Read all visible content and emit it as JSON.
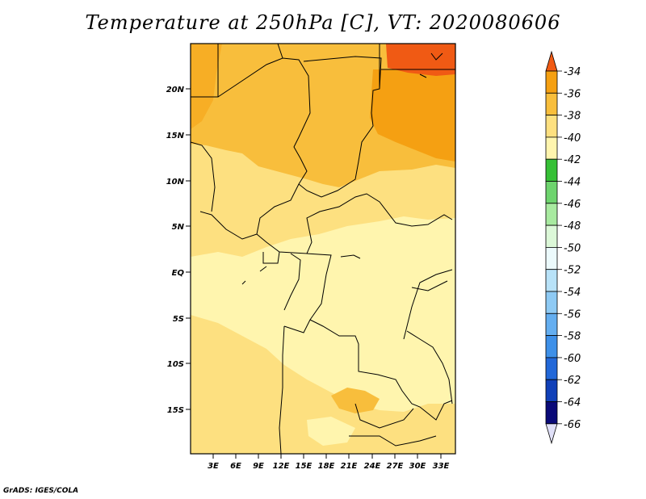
{
  "title": "Temperature at 250hPa [C], VT: 2020080606",
  "credit": "GrADS: IGES/COLA",
  "map": {
    "lat_labels": [
      "20N",
      "15N",
      "10N",
      "5N",
      "EQ",
      "5S",
      "10S",
      "15S"
    ],
    "lon_labels": [
      "3E",
      "6E",
      "9E",
      "12E",
      "15E",
      "18E",
      "21E",
      "24E",
      "27E",
      "30E",
      "33E"
    ]
  },
  "colorbar": {
    "levels": [
      "-34",
      "-36",
      "-38",
      "-40",
      "-42",
      "-44",
      "-46",
      "-48",
      "-50",
      "-52",
      "-54",
      "-56",
      "-58",
      "-60",
      "-62",
      "-64",
      "-66"
    ],
    "colors": [
      "#f05a14",
      "#f5a012",
      "#f8be3c",
      "#fde080",
      "#fff5ae",
      "#36c036",
      "#6ed46e",
      "#a8eaa0",
      "#dcf8d8",
      "#ecfafc",
      "#b8e2f8",
      "#8ecaf4",
      "#64aef0",
      "#3e90e8",
      "#2268d8",
      "#1040b8",
      "#0a0a78",
      "#e0e0f8"
    ]
  }
}
